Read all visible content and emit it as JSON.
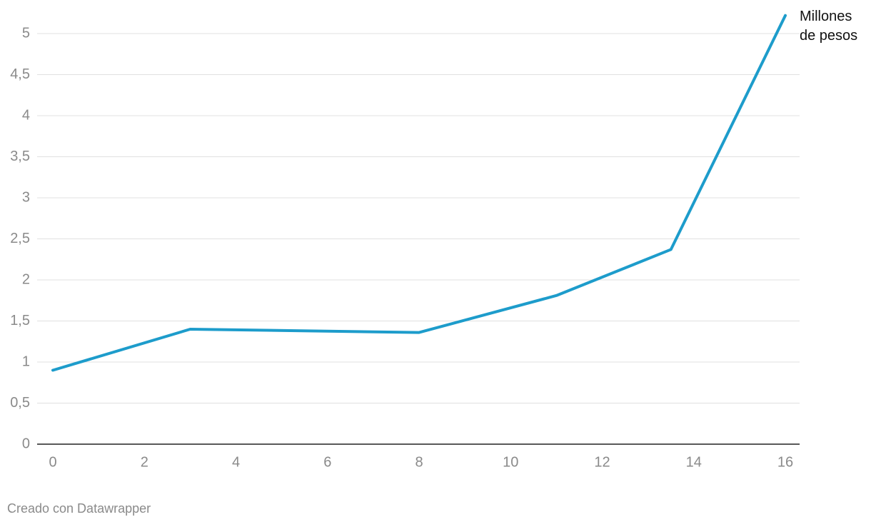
{
  "chart_data": {
    "type": "line",
    "x": [
      0,
      3,
      8,
      11,
      13.5,
      16
    ],
    "series": [
      {
        "name": "Millones de pesos",
        "color": "#1d9ccb",
        "values": [
          0.9,
          1.4,
          1.36,
          1.81,
          2.37,
          5.22
        ]
      }
    ],
    "xlim": [
      0,
      16
    ],
    "xticks": [
      0,
      2,
      4,
      6,
      8,
      10,
      12,
      14,
      16
    ],
    "ylim": [
      0,
      5
    ],
    "yticks": [
      0,
      {
        "value": 0.5,
        "label": "0,5"
      },
      1,
      {
        "value": 1.5,
        "label": "1,5"
      },
      2,
      {
        "value": 2.5,
        "label": "2,5"
      },
      3,
      {
        "value": 3.5,
        "label": "3,5"
      },
      4,
      {
        "value": 4.5,
        "label": "4,5"
      },
      5
    ],
    "grid": true,
    "source": "Creado con Datawrapper"
  }
}
